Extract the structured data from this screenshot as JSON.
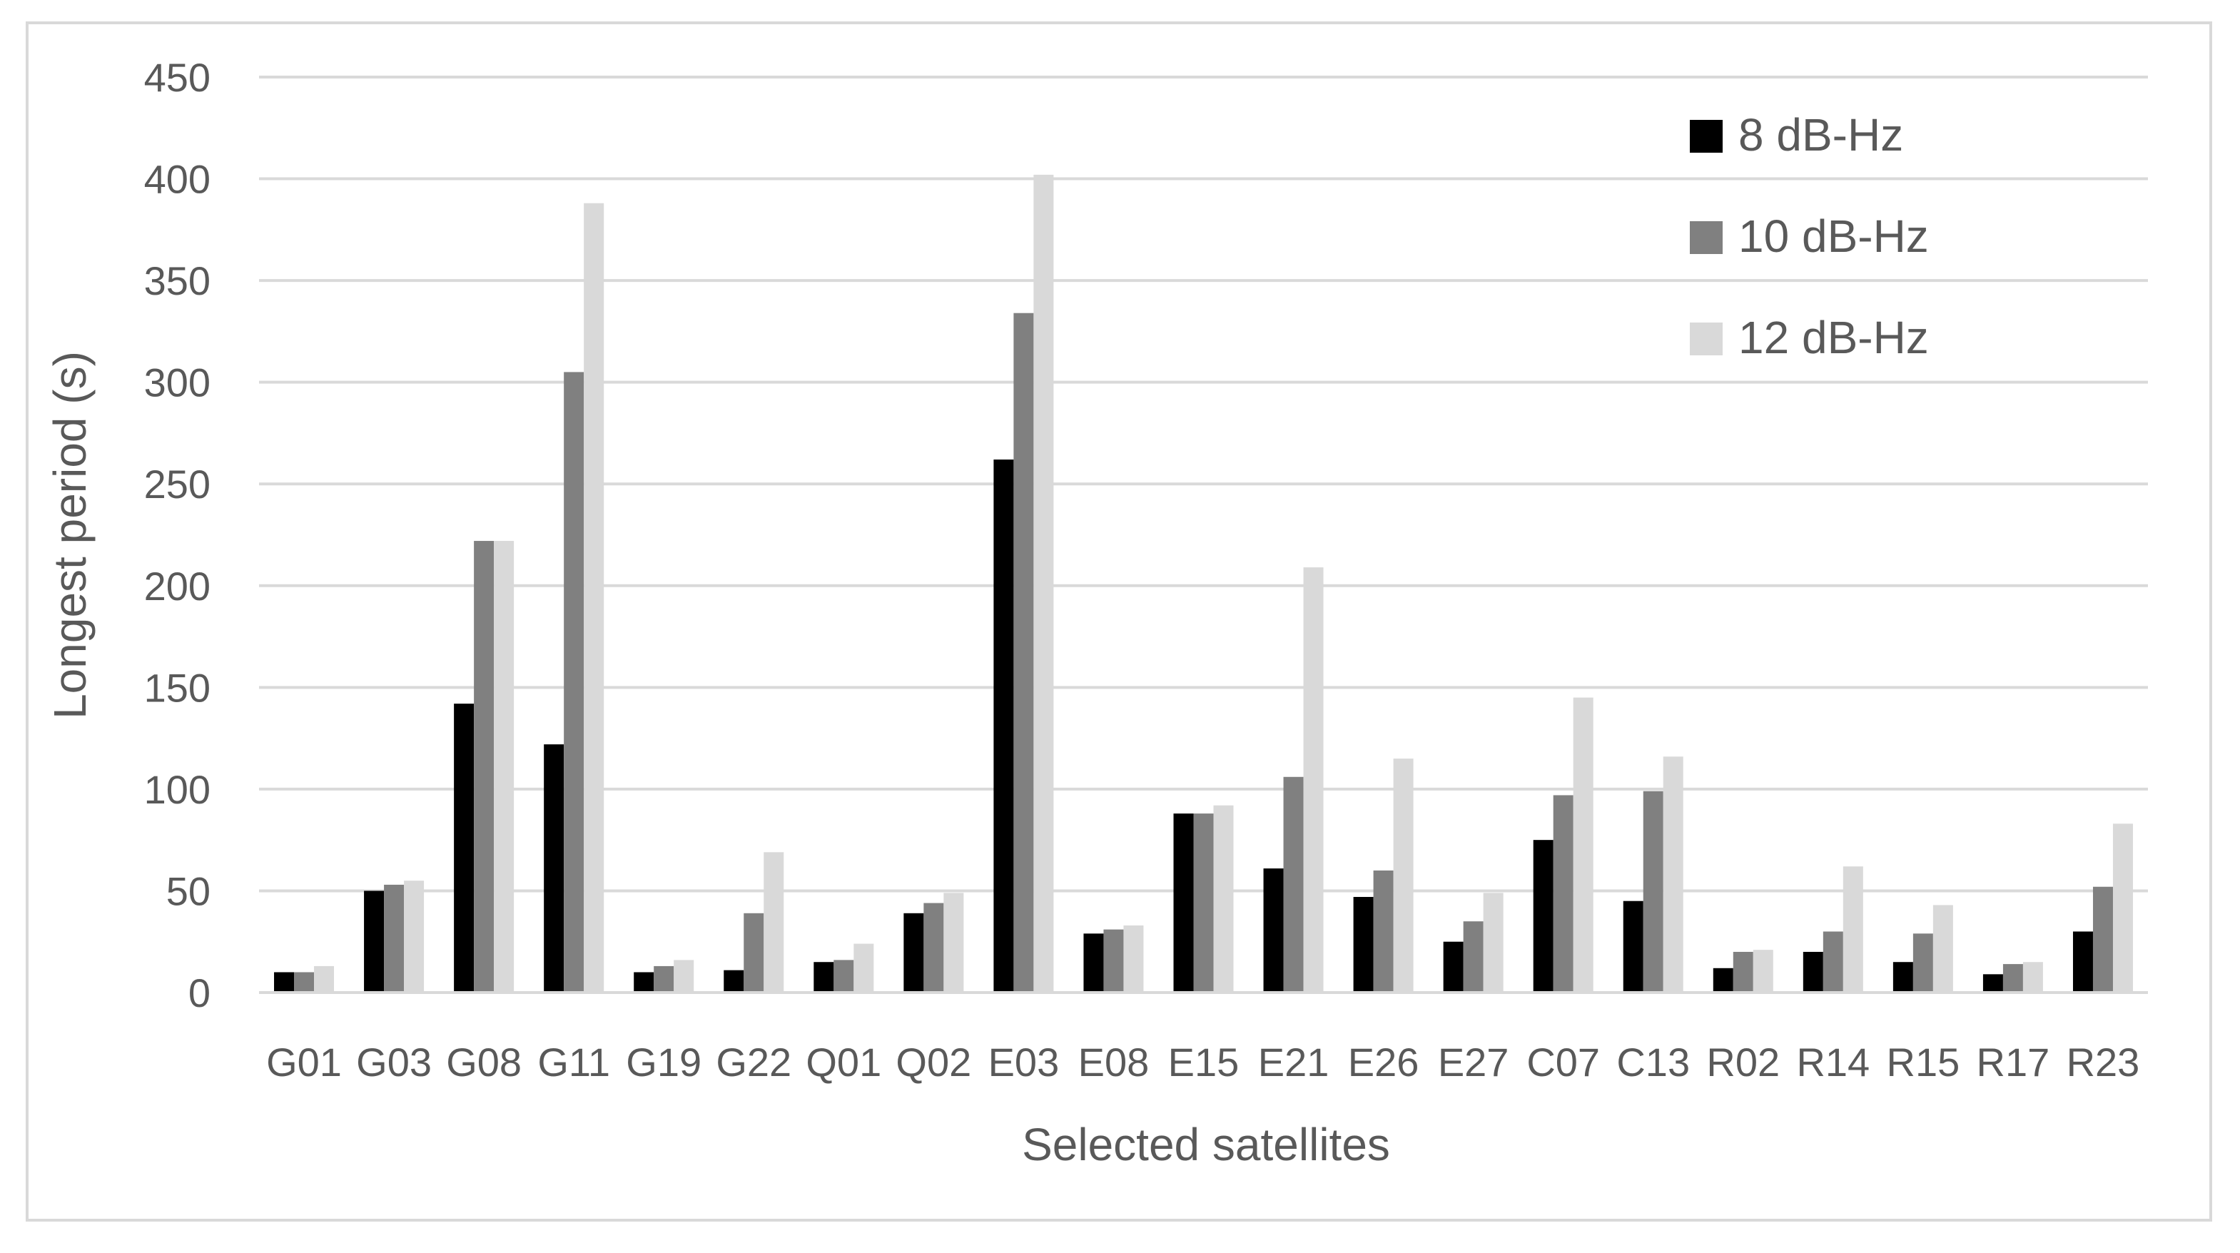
{
  "chart_data": {
    "type": "bar",
    "title": "",
    "xlabel": "Selected satellites",
    "ylabel": "Longest period (s)",
    "ylim": [
      0,
      450
    ],
    "yticks": [
      0,
      50,
      100,
      150,
      200,
      250,
      300,
      350,
      400,
      450
    ],
    "grid": true,
    "legend_position": "top-right",
    "categories": [
      "G01",
      "G03",
      "G08",
      "G11",
      "G19",
      "G22",
      "Q01",
      "Q02",
      "E03",
      "E08",
      "E15",
      "E21",
      "E26",
      "E27",
      "C07",
      "C13",
      "R02",
      "R14",
      "R15",
      "R17",
      "R23"
    ],
    "series": [
      {
        "name": "8 dB-Hz",
        "color": "#000000",
        "values": [
          10,
          50,
          142,
          122,
          10,
          11,
          15,
          39,
          262,
          29,
          88,
          61,
          47,
          25,
          75,
          45,
          12,
          20,
          15,
          9,
          30
        ]
      },
      {
        "name": "10 dB-Hz",
        "color": "#808080",
        "values": [
          10,
          53,
          222,
          305,
          13,
          39,
          16,
          44,
          334,
          31,
          88,
          106,
          60,
          35,
          97,
          99,
          20,
          30,
          29,
          14,
          52
        ]
      },
      {
        "name": "12 dB-Hz",
        "color": "#d9d9d9",
        "values": [
          13,
          55,
          222,
          388,
          16,
          69,
          24,
          49,
          402,
          33,
          92,
          209,
          115,
          49,
          145,
          116,
          21,
          62,
          43,
          15,
          83
        ]
      }
    ]
  }
}
